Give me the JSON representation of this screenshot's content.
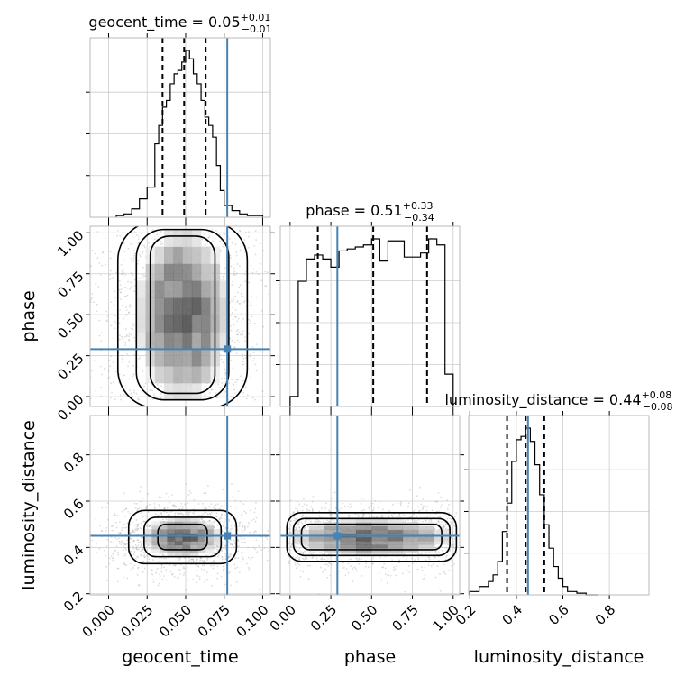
{
  "chart_data": {
    "type": "corner",
    "parameters": [
      "geocent_time",
      "phase",
      "luminosity_distance"
    ],
    "axis_labels": {
      "geocent_time": "geocent_time",
      "phase": "phase",
      "luminosity_distance": "luminosity_distance"
    },
    "ranges": {
      "geocent_time": [
        -0.012,
        0.105
      ],
      "phase": [
        -0.06,
        1.04
      ],
      "luminosity_distance": [
        0.195,
        0.97
      ]
    },
    "ticks": {
      "geocent_time": [
        "0.000",
        "0.025",
        "0.050",
        "0.075",
        "0.100"
      ],
      "phase": [
        "0.00",
        "0.25",
        "0.50",
        "0.75",
        "1.00"
      ],
      "luminosity_distance": [
        "0.2",
        "0.4",
        "0.6",
        "0.8"
      ]
    },
    "tick_values": {
      "geocent_time": [
        0.0,
        0.025,
        0.05,
        0.075,
        0.1
      ],
      "phase": [
        0.0,
        0.25,
        0.5,
        0.75,
        1.0
      ],
      "luminosity_distance": [
        0.2,
        0.4,
        0.6,
        0.8
      ]
    },
    "titles": {
      "geocent_time": {
        "prefix": "geocent_time = 0.05",
        "sup": "+0.01",
        "sub": "−0.01"
      },
      "phase": {
        "prefix": "phase = 0.51",
        "sup": "+0.33",
        "sub": "−0.34"
      },
      "luminosity_distance": {
        "prefix": "luminosity_distance = 0.44",
        "sup": "+0.08",
        "sub": "−0.08"
      }
    },
    "truths": {
      "geocent_time": 0.077,
      "phase": 0.29,
      "luminosity_distance": 0.45
    },
    "quantiles": {
      "geocent_time": [
        0.035,
        0.049,
        0.063
      ],
      "phase": [
        0.17,
        0.51,
        0.84
      ],
      "luminosity_distance": [
        0.36,
        0.44,
        0.52
      ]
    },
    "histograms": {
      "geocent_time": {
        "edges": [
          0.005,
          0.01,
          0.015,
          0.02,
          0.025,
          0.03,
          0.0325,
          0.035,
          0.0375,
          0.04,
          0.0425,
          0.045,
          0.0475,
          0.05,
          0.0525,
          0.055,
          0.0575,
          0.06,
          0.0625,
          0.065,
          0.0675,
          0.07,
          0.0725,
          0.075,
          0.08,
          0.085,
          0.09,
          0.1
        ],
        "counts": [
          0.01,
          0.02,
          0.05,
          0.11,
          0.18,
          0.44,
          0.55,
          0.66,
          0.7,
          0.8,
          0.86,
          0.88,
          0.93,
          1.0,
          0.95,
          0.86,
          0.8,
          0.7,
          0.6,
          0.55,
          0.48,
          0.31,
          0.16,
          0.07,
          0.04,
          0.02,
          0.01
        ]
      },
      "phase": {
        "edges": [
          0.0,
          0.05,
          0.1,
          0.15,
          0.2,
          0.25,
          0.3,
          0.35,
          0.4,
          0.45,
          0.5,
          0.55,
          0.6,
          0.65,
          0.7,
          0.75,
          0.8,
          0.85,
          0.9,
          0.95,
          1.0
        ],
        "counts": [
          0.05,
          0.62,
          0.73,
          0.75,
          0.73,
          0.69,
          0.77,
          0.78,
          0.79,
          0.8,
          0.83,
          0.72,
          0.82,
          0.82,
          0.74,
          0.74,
          0.76,
          0.83,
          0.8,
          0.16
        ]
      },
      "luminosity_distance": {
        "edges": [
          0.2,
          0.24,
          0.28,
          0.3,
          0.32,
          0.34,
          0.36,
          0.38,
          0.4,
          0.42,
          0.44,
          0.46,
          0.48,
          0.5,
          0.52,
          0.54,
          0.56,
          0.58,
          0.6,
          0.62,
          0.66,
          0.7,
          0.75
        ],
        "counts": [
          0.02,
          0.05,
          0.08,
          0.12,
          0.2,
          0.38,
          0.55,
          0.8,
          0.93,
          0.95,
          1.0,
          0.92,
          0.78,
          0.6,
          0.42,
          0.28,
          0.17,
          0.1,
          0.05,
          0.02,
          0.01,
          0.0
        ]
      }
    },
    "joint_contours": {
      "phase_vs_geocent_time": {
        "center": [
          0.048,
          0.5
        ],
        "widths": [
          0.021,
          0.03,
          0.042
        ],
        "heights": [
          0.48,
          0.52,
          0.57
        ]
      },
      "luminosity_distance_vs_geocent_time": {
        "center": [
          0.048,
          0.445
        ],
        "widths": [
          0.016,
          0.025,
          0.035
        ],
        "heights": [
          0.055,
          0.085,
          0.115
        ]
      },
      "luminosity_distance_vs_phase": {
        "center": [
          0.5,
          0.445
        ],
        "widths": [
          0.43,
          0.48,
          0.52
        ],
        "heights": [
          0.055,
          0.08,
          0.105
        ]
      }
    },
    "grid": true
  }
}
